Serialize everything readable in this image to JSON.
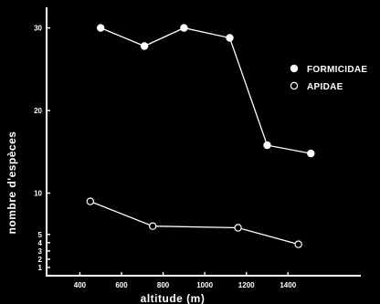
{
  "chart_data": {
    "type": "line",
    "xlabel": "altitude (m)",
    "ylabel": "nombre d'espèces",
    "x_ticks": [
      400,
      600,
      800,
      1000,
      1200,
      1400
    ],
    "y_ticks": [
      1,
      2,
      3,
      4,
      5,
      10,
      20,
      30
    ],
    "xlim": [
      240,
      1750
    ],
    "ylim": [
      0,
      32.5
    ],
    "grid": false,
    "legend_position": "top-right",
    "series": [
      {
        "name": "FORMICIDAE",
        "marker": "filled-circle",
        "x": [
          500,
          710,
          900,
          1120,
          1300,
          1510
        ],
        "y": [
          30,
          27.8,
          30,
          28.8,
          15.8,
          14.8
        ]
      },
      {
        "name": "APIDAE",
        "marker": "open-circle",
        "x": [
          450,
          750,
          1160,
          1450
        ],
        "y": [
          9,
          6,
          5.8,
          3.8
        ]
      }
    ]
  },
  "colors": {
    "background": "#000000",
    "foreground": "#ffffff"
  }
}
